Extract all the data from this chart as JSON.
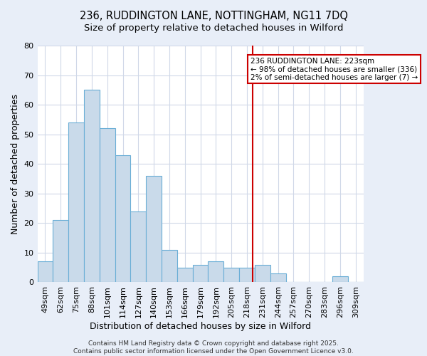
{
  "title_line1": "236, RUDDINGTON LANE, NOTTINGHAM, NG11 7DQ",
  "title_line2": "Size of property relative to detached houses in Wilford",
  "xlabel": "Distribution of detached houses by size in Wilford",
  "ylabel": "Number of detached properties",
  "categories": [
    "49sqm",
    "62sqm",
    "75sqm",
    "88sqm",
    "101sqm",
    "114sqm",
    "127sqm",
    "140sqm",
    "153sqm",
    "166sqm",
    "179sqm",
    "192sqm",
    "205sqm",
    "218sqm",
    "231sqm",
    "244sqm",
    "257sqm",
    "270sqm",
    "283sqm",
    "296sqm",
    "309sqm"
  ],
  "values": [
    7,
    21,
    54,
    65,
    52,
    43,
    24,
    36,
    11,
    5,
    6,
    7,
    5,
    5,
    6,
    3,
    0,
    0,
    0,
    2,
    0
  ],
  "bar_color": "#c9daea",
  "bar_edge_color": "#6aaed6",
  "ylim": [
    0,
    80
  ],
  "yticks": [
    0,
    10,
    20,
    30,
    40,
    50,
    60,
    70,
    80
  ],
  "annotation_text": "236 RUDDINGTON LANE: 223sqm\n← 98% of detached houses are smaller (336)\n2% of semi-detached houses are larger (7) →",
  "annotation_box_facecolor": "#ffffff",
  "annotation_border_color": "#cc0000",
  "footer_text": "Contains HM Land Registry data © Crown copyright and database right 2025.\nContains public sector information licensed under the Open Government Licence v3.0.",
  "figure_bg_color": "#e8eef8",
  "plot_bg_color": "#ffffff",
  "grid_color": "#d0d8e8",
  "title_fontsize": 10.5,
  "subtitle_fontsize": 9.5,
  "axis_label_fontsize": 9,
  "tick_fontsize": 8,
  "footer_fontsize": 6.5,
  "annotation_fontsize": 7.5
}
